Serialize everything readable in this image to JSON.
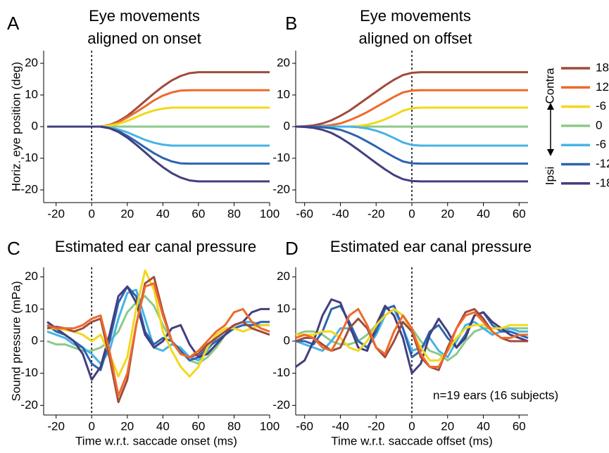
{
  "chart_data": [
    {
      "type": "line",
      "panel_label": "A",
      "title": [
        "Eye movements",
        "aligned on onset"
      ],
      "y_label": "Horiz. eye position (deg)",
      "x": [
        -25,
        -20,
        -15,
        -10,
        -5,
        0,
        5,
        10,
        15,
        20,
        25,
        30,
        35,
        40,
        45,
        50,
        55,
        60,
        65,
        70,
        75,
        80,
        85,
        90,
        95,
        100
      ],
      "xlim": [
        -27,
        100
      ],
      "ylim": [
        -24,
        24
      ],
      "xticks": [
        -20,
        0,
        20,
        40,
        60,
        80,
        100
      ],
      "yticks": [
        -20,
        -10,
        0,
        10,
        20
      ],
      "vline": 0,
      "legend_labels": [
        "Contra",
        "Ipsi"
      ],
      "series": [
        {
          "name": "0",
          "color": "#8cc98a",
          "values": [
            0,
            0,
            0,
            0,
            0,
            0,
            0,
            0,
            0,
            0,
            0,
            0,
            0,
            0,
            0,
            0,
            0,
            0,
            0,
            0,
            0,
            0,
            0,
            0,
            0,
            0
          ]
        },
        {
          "name": "18",
          "color": "#a04a3c",
          "values": [
            0,
            0,
            0,
            0,
            0,
            0,
            0,
            0.5,
            1.7,
            3.4,
            5.7,
            8.1,
            10.5,
            12.7,
            14.6,
            16,
            16.9,
            17.2,
            17.2,
            17.2,
            17.2,
            17.2,
            17.2,
            17.2,
            17.2,
            17.2
          ]
        },
        {
          "name": "12",
          "color": "#ee6a2a",
          "values": [
            0,
            0,
            0,
            0,
            0,
            0,
            0,
            0.5,
            1.4,
            2.9,
            4.6,
            6.4,
            8.3,
            9.8,
            10.8,
            11.4,
            11.5,
            11.5,
            11.5,
            11.5,
            11.5,
            11.5,
            11.5,
            11.5,
            11.5,
            11.5
          ]
        },
        {
          "name": "-6",
          "color": "#f2d81a",
          "values": [
            0,
            0,
            0,
            0,
            0,
            0,
            0,
            0.3,
            0.9,
            1.8,
            3,
            4.2,
            5.1,
            5.7,
            6,
            6,
            6,
            6,
            6,
            6,
            6,
            6,
            6,
            6,
            6,
            6
          ]
        },
        {
          "name": "-6",
          "color": "#45b4e6",
          "values": [
            0,
            0,
            0,
            0,
            0,
            0,
            0,
            -0.3,
            -0.9,
            -1.8,
            -3,
            -4.2,
            -5.1,
            -5.7,
            -6,
            -6,
            -6,
            -6,
            -6,
            -6,
            -6,
            -6,
            -6,
            -6,
            -6,
            -6
          ]
        },
        {
          "name": "-12",
          "color": "#2e63b0",
          "values": [
            0,
            0,
            0,
            0,
            0,
            0,
            0,
            -0.5,
            -1.4,
            -2.9,
            -4.7,
            -6.6,
            -8.4,
            -9.9,
            -11,
            -11.6,
            -11.7,
            -11.7,
            -11.7,
            -11.7,
            -11.7,
            -11.7,
            -11.7,
            -11.7,
            -11.7,
            -11.7
          ]
        },
        {
          "name": "-18",
          "color": "#423f7e",
          "values": [
            0,
            0,
            0,
            0,
            0,
            0,
            0,
            -0.5,
            -1.7,
            -3.5,
            -5.7,
            -8.1,
            -10.6,
            -12.8,
            -14.7,
            -16.1,
            -17,
            -17.3,
            -17.3,
            -17.3,
            -17.3,
            -17.3,
            -17.3,
            -17.3,
            -17.3,
            -17.3
          ]
        }
      ]
    },
    {
      "type": "line",
      "panel_label": "B",
      "title": [
        "Eye movements",
        "aligned on offset"
      ],
      "x": [
        -65,
        -60,
        -55,
        -50,
        -45,
        -40,
        -35,
        -30,
        -25,
        -20,
        -15,
        -10,
        -5,
        0,
        5,
        10,
        15,
        20,
        25,
        30,
        35,
        40,
        45,
        50,
        55,
        60,
        65
      ],
      "xlim": [
        -65,
        65
      ],
      "ylim": [
        -24,
        24
      ],
      "xticks": [
        -60,
        -40,
        -20,
        0,
        20,
        40,
        60
      ],
      "yticks": [
        -20,
        -10,
        0,
        10,
        20
      ],
      "vline": 0,
      "series": [
        {
          "color": "#8cc98a",
          "values": [
            0,
            0,
            0,
            0,
            0,
            0,
            0,
            0,
            0,
            0,
            0,
            0,
            0,
            0,
            0,
            0,
            0,
            0,
            0,
            0,
            0,
            0,
            0,
            0,
            0,
            0,
            0
          ]
        },
        {
          "color": "#a04a3c",
          "values": [
            0,
            0.1,
            0.4,
            1,
            2,
            3.4,
            5,
            7,
            9,
            11,
            13,
            14.8,
            16.3,
            17,
            17.2,
            17.2,
            17.2,
            17.2,
            17.2,
            17.2,
            17.2,
            17.2,
            17.2,
            17.2,
            17.2,
            17.2,
            17.2
          ]
        },
        {
          "color": "#ee6a2a",
          "values": [
            0,
            0,
            0,
            0.2,
            0.5,
            1,
            2,
            3.2,
            4.6,
            6.2,
            7.8,
            9.4,
            10.8,
            11.4,
            11.5,
            11.5,
            11.5,
            11.5,
            11.5,
            11.5,
            11.5,
            11.5,
            11.5,
            11.5,
            11.5,
            11.5,
            11.5
          ]
        },
        {
          "color": "#f2d81a",
          "values": [
            0,
            0,
            0,
            0,
            0,
            0,
            0,
            0.2,
            0.6,
            1.3,
            2.3,
            3.6,
            5,
            5.8,
            6,
            6,
            6,
            6,
            6,
            6,
            6,
            6,
            6,
            6,
            6,
            6,
            6
          ]
        },
        {
          "color": "#45b4e6",
          "values": [
            0,
            0,
            0,
            0,
            0,
            0,
            0,
            -0.2,
            -0.6,
            -1.3,
            -2.3,
            -3.6,
            -5,
            -5.8,
            -6,
            -6,
            -6,
            -6,
            -6,
            -6,
            -6,
            -6,
            -6,
            -6,
            -6,
            -6,
            -6
          ]
        },
        {
          "color": "#2e63b0",
          "values": [
            0,
            0,
            0,
            -0.2,
            -0.5,
            -1,
            -2,
            -3.2,
            -4.7,
            -6.3,
            -8,
            -9.6,
            -11,
            -11.6,
            -11.7,
            -11.7,
            -11.7,
            -11.7,
            -11.7,
            -11.7,
            -11.7,
            -11.7,
            -11.7,
            -11.7,
            -11.7,
            -11.7,
            -11.7
          ]
        },
        {
          "color": "#423f7e",
          "values": [
            0,
            -0.1,
            -0.4,
            -1,
            -2,
            -3.5,
            -5.3,
            -7.3,
            -9.4,
            -11.5,
            -13.5,
            -15.3,
            -16.6,
            -17.2,
            -17.3,
            -17.3,
            -17.3,
            -17.3,
            -17.3,
            -17.3,
            -17.3,
            -17.3,
            -17.3,
            -17.3,
            -17.3,
            -17.3,
            -17.3
          ]
        }
      ]
    },
    {
      "type": "line",
      "panel_label": "C",
      "title": [
        "Estimated ear canal pressure"
      ],
      "y_label": "Sound pressure (mPa)",
      "x_label": "Time w.r.t. saccade onset (ms)",
      "x": [
        -25,
        -20,
        -15,
        -10,
        -5,
        0,
        5,
        10,
        15,
        20,
        25,
        30,
        35,
        40,
        45,
        50,
        55,
        60,
        65,
        70,
        75,
        80,
        85,
        90,
        95,
        100
      ],
      "xlim": [
        -27,
        100
      ],
      "ylim": [
        -23,
        23
      ],
      "xticks": [
        -20,
        0,
        20,
        40,
        60,
        80,
        100
      ],
      "yticks": [
        -20,
        -10,
        0,
        10,
        20
      ],
      "vline": 0,
      "series": [
        {
          "color": "#8cc98a",
          "values": [
            0,
            -1,
            -1,
            -2,
            -3,
            -3,
            -2,
            0,
            3,
            9,
            12,
            14,
            11,
            5,
            0,
            -3,
            -6,
            -7,
            -5,
            -2,
            2,
            4,
            5,
            5,
            5,
            5
          ]
        },
        {
          "color": "#45b4e6",
          "values": [
            3,
            2,
            1,
            -1,
            -2,
            -4,
            -7,
            -3,
            7,
            15,
            16,
            7,
            -2,
            -3,
            -1,
            -2,
            -5,
            -6,
            -3,
            1,
            3,
            5,
            6,
            6,
            5,
            5
          ]
        },
        {
          "color": "#2e63b0",
          "values": [
            5,
            3,
            2,
            0,
            -2,
            -7,
            -9,
            0,
            12,
            17,
            14,
            3,
            -1,
            1,
            0,
            -3,
            -6,
            -5,
            -2,
            0,
            2,
            4,
            5,
            5,
            6,
            6
          ]
        },
        {
          "color": "#423f7e",
          "values": [
            6,
            4,
            2,
            0,
            -4,
            -12,
            -8,
            2,
            14,
            17,
            12,
            2,
            -2,
            0,
            4,
            5,
            -1,
            -5,
            -4,
            -1,
            2,
            5,
            6,
            9,
            10,
            10
          ]
        },
        {
          "color": "#f2d81a",
          "values": [
            4,
            4,
            3.5,
            3,
            2,
            0,
            2,
            -4,
            -11,
            -5,
            10,
            22,
            16,
            3,
            -3,
            -8,
            -11,
            -8,
            -2,
            2,
            4,
            4,
            3,
            4,
            5,
            5
          ]
        },
        {
          "color": "#a04a3c",
          "values": [
            4,
            4.5,
            4,
            3,
            4,
            6,
            7,
            -5,
            -19,
            -12,
            5,
            18,
            20,
            9,
            0,
            -4,
            -5,
            -4,
            -1,
            1,
            3,
            5,
            6,
            4,
            3,
            2
          ]
        },
        {
          "color": "#ee6a2a",
          "values": [
            5,
            4,
            4,
            4,
            5,
            7,
            8,
            -3,
            -17,
            -10,
            5,
            17,
            18,
            8,
            0,
            -4,
            -5,
            -3,
            0,
            3,
            5,
            9,
            10,
            6,
            4,
            3
          ]
        }
      ]
    },
    {
      "type": "line",
      "panel_label": "D",
      "title": [
        "Estimated ear canal pressure"
      ],
      "x_label": "Time w.r.t. saccade offset (ms)",
      "annotation": "n=19 ears (16 subjects)",
      "x": [
        -65,
        -60,
        -55,
        -50,
        -45,
        -40,
        -35,
        -30,
        -25,
        -20,
        -15,
        -10,
        -5,
        0,
        5,
        10,
        15,
        20,
        25,
        30,
        35,
        40,
        45,
        50,
        55,
        60,
        65
      ],
      "xlim": [
        -65,
        65
      ],
      "ylim": [
        -23,
        23
      ],
      "xticks": [
        -60,
        -40,
        -20,
        0,
        20,
        40,
        60
      ],
      "yticks": [
        -20,
        -10,
        0,
        10,
        20
      ],
      "vline": 0,
      "series": [
        {
          "color": "#8cc98a",
          "values": [
            2,
            3,
            3,
            2,
            0,
            -1,
            -1,
            0,
            2,
            5,
            8,
            10,
            8,
            4,
            0,
            -3,
            -4,
            -6,
            -4,
            0,
            3,
            4,
            4,
            4,
            4,
            4,
            4
          ]
        },
        {
          "color": "#45b4e6",
          "values": [
            0,
            -1,
            -2,
            -3,
            0,
            4,
            4,
            0,
            -2,
            2,
            8,
            10,
            4,
            -3,
            -2,
            1,
            -3,
            -5,
            0,
            5,
            6,
            4,
            2,
            3,
            4,
            3,
            3
          ]
        },
        {
          "color": "#2e63b0",
          "values": [
            0,
            0,
            -1,
            3,
            10,
            11,
            6,
            0,
            -2,
            3,
            10,
            11,
            4,
            -5,
            -3,
            3,
            5,
            1,
            -2,
            2,
            8,
            9,
            5,
            3,
            3,
            2,
            1
          ]
        },
        {
          "color": "#423f7e",
          "values": [
            -8,
            -6,
            0,
            8,
            13,
            12,
            5,
            -2,
            -3,
            5,
            11,
            8,
            1,
            -10,
            -7,
            2,
            7,
            3,
            -2,
            1,
            8,
            9,
            6,
            4,
            2,
            1,
            0
          ]
        },
        {
          "color": "#f2d81a",
          "values": [
            2,
            2,
            2,
            3,
            3,
            1,
            -2,
            -3,
            0,
            5,
            8,
            10,
            8,
            3,
            -2,
            -6,
            -6,
            -3,
            1,
            4,
            5,
            5,
            4,
            4,
            5,
            5,
            5
          ]
        },
        {
          "color": "#a04a3c",
          "values": [
            0,
            1,
            1,
            -1,
            -3,
            -2,
            4,
            7,
            4,
            -2,
            -5,
            0,
            6,
            3,
            -5,
            -8,
            -9,
            -2,
            4,
            9,
            10,
            7,
            3,
            1,
            0,
            0,
            0
          ]
        },
        {
          "color": "#ee6a2a",
          "values": [
            1,
            2,
            1,
            -2,
            -3,
            2,
            8,
            10,
            5,
            -2,
            -4,
            3,
            8,
            4,
            -4,
            -8,
            -8,
            -3,
            4,
            8,
            9,
            6,
            3,
            1,
            1,
            2,
            2
          ]
        }
      ]
    }
  ]
}
